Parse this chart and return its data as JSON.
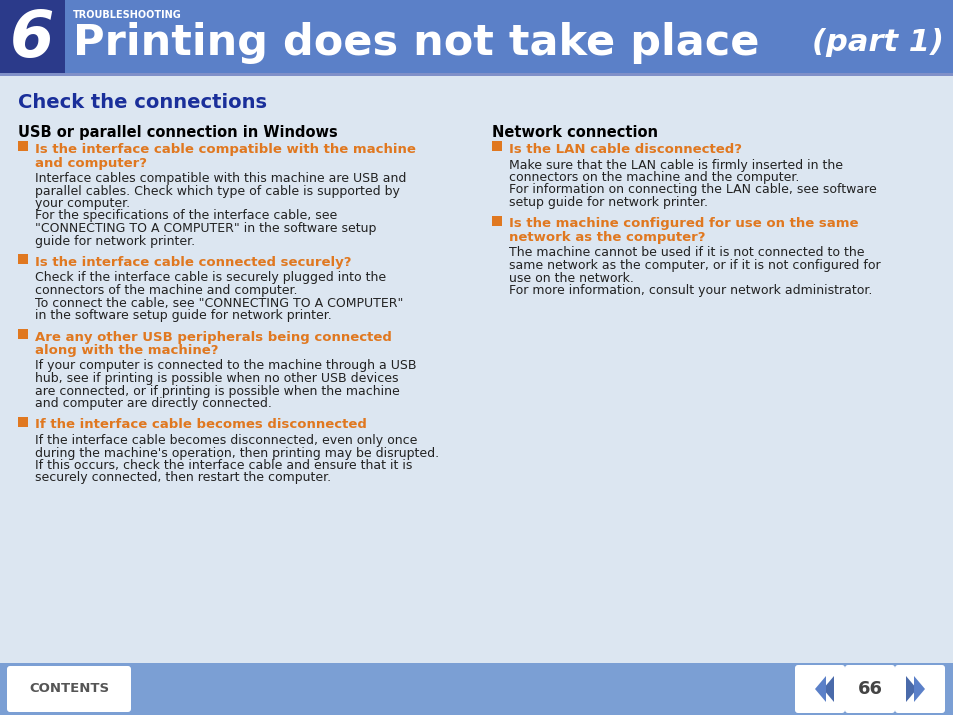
{
  "header_bg": "#5b80c8",
  "header_dark_bg": "#2b3a8a",
  "header_number": "6",
  "header_sub": "TROUBLESHOOTING",
  "header_title": "Printing does not take place",
  "header_part": "(part 1)",
  "body_bg": "#dce6f1",
  "footer_bg": "#7b9fd4",
  "section_title": "Check the connections",
  "section_title_color": "#1a2f9a",
  "col1_heading": "USB or parallel connection in Windows",
  "col2_heading": "Network connection",
  "heading_color": "#000000",
  "orange": "#e07820",
  "body_text_color": "#222222",
  "col1_items": [
    {
      "title": "Is the interface cable compatible with the machine\nand computer?",
      "body": "Interface cables compatible with this machine are USB and\nparallel cables. Check which type of cable is supported by\nyour computer.\nFor the specifications of the interface cable, see\n\"CONNECTING TO A COMPUTER\" in the software setup\nguide for network printer."
    },
    {
      "title": "Is the interface cable connected securely?",
      "body": "Check if the interface cable is securely plugged into the\nconnectors of the machine and computer.\nTo connect the cable, see \"CONNECTING TO A COMPUTER\"\nin the software setup guide for network printer."
    },
    {
      "title": "Are any other USB peripherals being connected\nalong with the machine?",
      "body": "If your computer is connected to the machine through a USB\nhub, see if printing is possible when no other USB devices\nare connected, or if printing is possible when the machine\nand computer are directly connected."
    },
    {
      "title": "If the interface cable becomes disconnected",
      "body": "If the interface cable becomes disconnected, even only once\nduring the machine's operation, then printing may be disrupted.\nIf this occurs, check the interface cable and ensure that it is\nsecurely connected, then restart the computer."
    }
  ],
  "col2_items": [
    {
      "title": "Is the LAN cable disconnected?",
      "body": "Make sure that the LAN cable is firmly inserted in the\nconnectors on the machine and the computer.\nFor information on connecting the LAN cable, see software\nsetup guide for network printer."
    },
    {
      "title": "Is the machine configured for use on the same\nnetwork as the computer?",
      "body": "The machine cannot be used if it is not connected to the\nsame network as the computer, or if it is not configured for\nuse on the network.\nFor more information, consult your network administrator."
    }
  ],
  "footer_contents_text": "CONTENTS",
  "footer_page_num": "66"
}
